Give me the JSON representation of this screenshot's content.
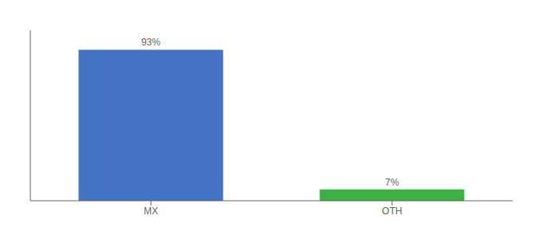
{
  "chart_data": {
    "type": "bar",
    "categories": [
      "MX",
      "OTH"
    ],
    "values": [
      93,
      7
    ],
    "value_labels": [
      "93%",
      "7%"
    ],
    "colors": [
      "#4472c4",
      "#3cb043"
    ],
    "ylim": [
      0,
      105
    ],
    "grid": false,
    "data_labels": true,
    "tick_labels": "x"
  }
}
